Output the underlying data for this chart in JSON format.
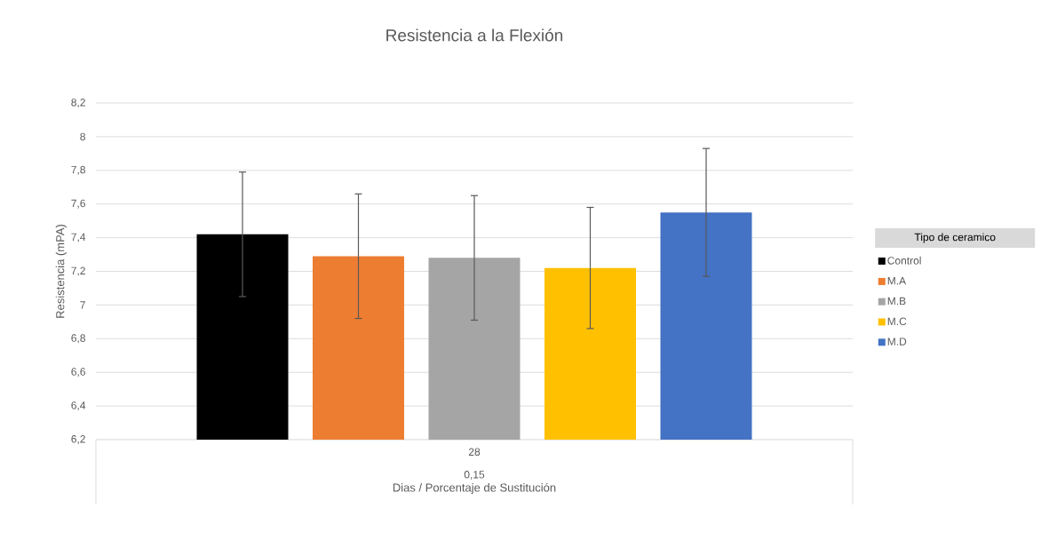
{
  "chart_data": {
    "type": "bar",
    "title": "Resistencia a la Flexión",
    "xlabel": "Dias / Porcentaje de Sustitución",
    "ylabel": "Resistencia (mPA)",
    "legend_title": "Tipo de ceramico",
    "categories": [
      "28"
    ],
    "annotations": [
      "0,15"
    ],
    "series": [
      {
        "name": "Control",
        "color": "#000000",
        "values": [
          7.42
        ],
        "errors": [
          0.37
        ]
      },
      {
        "name": "M.A",
        "color": "#ed7d31",
        "values": [
          7.29
        ],
        "errors": [
          0.37
        ]
      },
      {
        "name": "M.B",
        "color": "#a5a5a5",
        "values": [
          7.28
        ],
        "errors": [
          0.37
        ]
      },
      {
        "name": "M.C",
        "color": "#ffc000",
        "values": [
          7.22
        ],
        "errors": [
          0.36
        ]
      },
      {
        "name": "M.D",
        "color": "#4472c4",
        "values": [
          7.55
        ],
        "errors": [
          0.38
        ]
      }
    ],
    "ylim": [
      6.2,
      8.2
    ],
    "yticks": [
      {
        "value": 6.2,
        "label": "6,2"
      },
      {
        "value": 6.4,
        "label": "6,4"
      },
      {
        "value": 6.6,
        "label": "6,6"
      },
      {
        "value": 6.8,
        "label": "6,8"
      },
      7,
      {
        "value": 7.2,
        "label": "7,2"
      },
      {
        "value": 7.4,
        "label": "7,4"
      },
      {
        "value": 7.6,
        "label": "7,6"
      },
      {
        "value": 7.8,
        "label": "7,8"
      },
      8,
      {
        "value": 8.2,
        "label": "8,2"
      }
    ],
    "grid": "y",
    "legend": "right"
  }
}
